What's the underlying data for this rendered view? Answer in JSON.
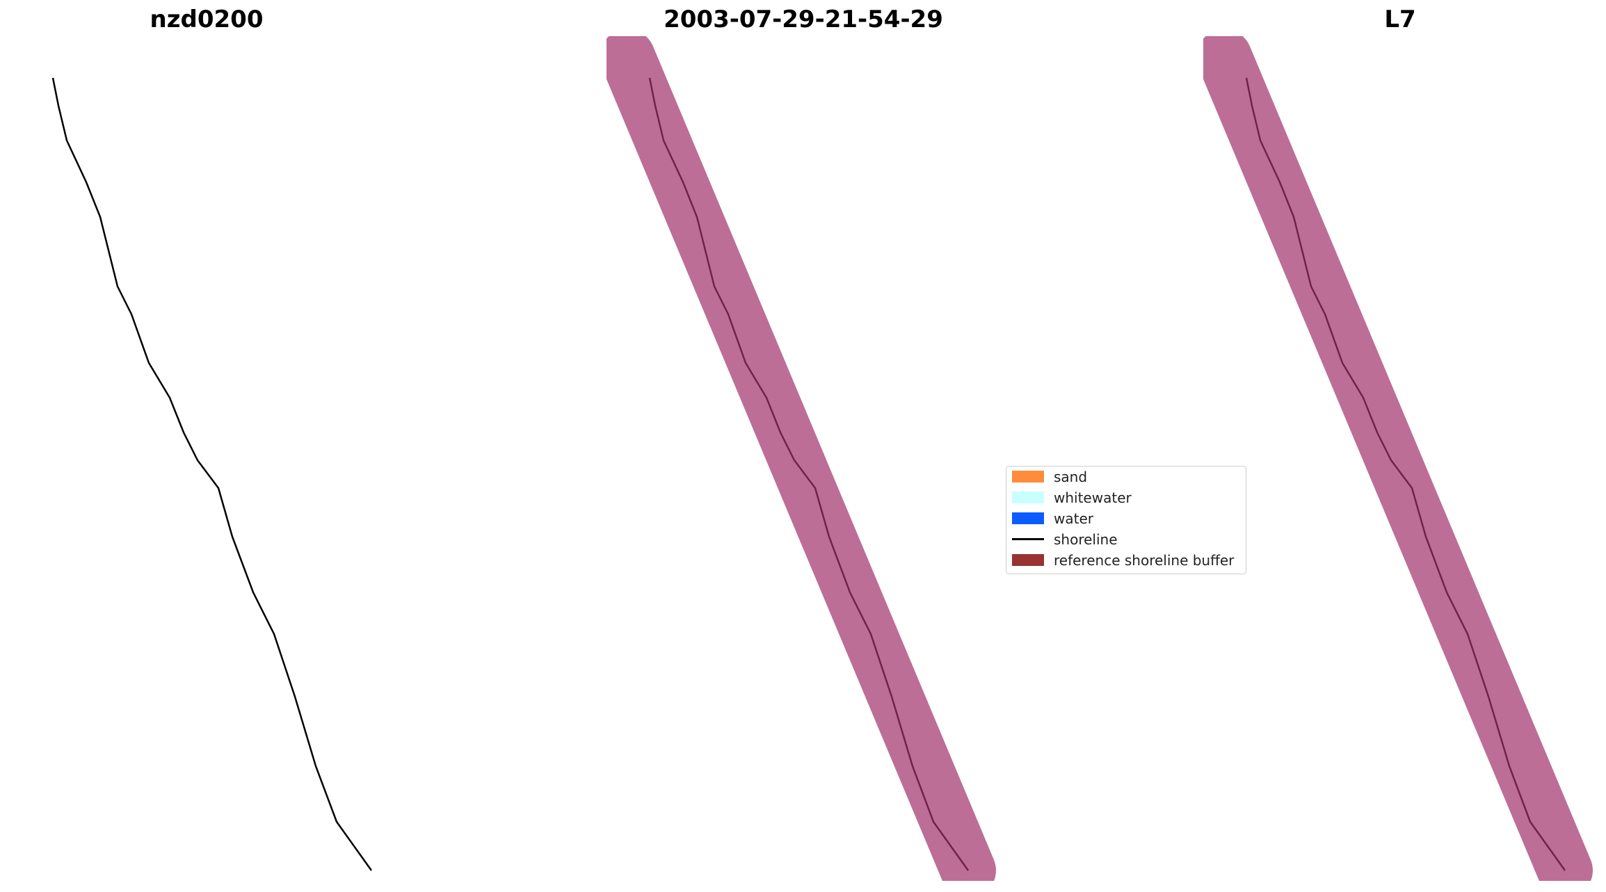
{
  "panels": [
    {
      "title": "nzd0200"
    },
    {
      "title": "2003-07-29-21-54-29"
    },
    {
      "title": "L7"
    }
  ],
  "legend": {
    "items": [
      {
        "label": "sand",
        "color": "#ff8c3a",
        "kind": "patch"
      },
      {
        "label": "whitewater",
        "color": "#c8ffff",
        "kind": "patch"
      },
      {
        "label": "water",
        "color": "#0a5cff",
        "kind": "patch"
      },
      {
        "label": "shoreline",
        "color": "#000000",
        "kind": "line"
      },
      {
        "label": "reference shoreline buffer",
        "color": "#993333",
        "kind": "patch"
      }
    ]
  },
  "colors": {
    "land": "#2f4a2a",
    "sea": "#2b5a6a",
    "surf": "#e8eef0",
    "water_class": "#0a5cff",
    "index_positive": "#ff2020",
    "index_negative": "#3a3adf",
    "buffer": "#a0306a"
  }
}
